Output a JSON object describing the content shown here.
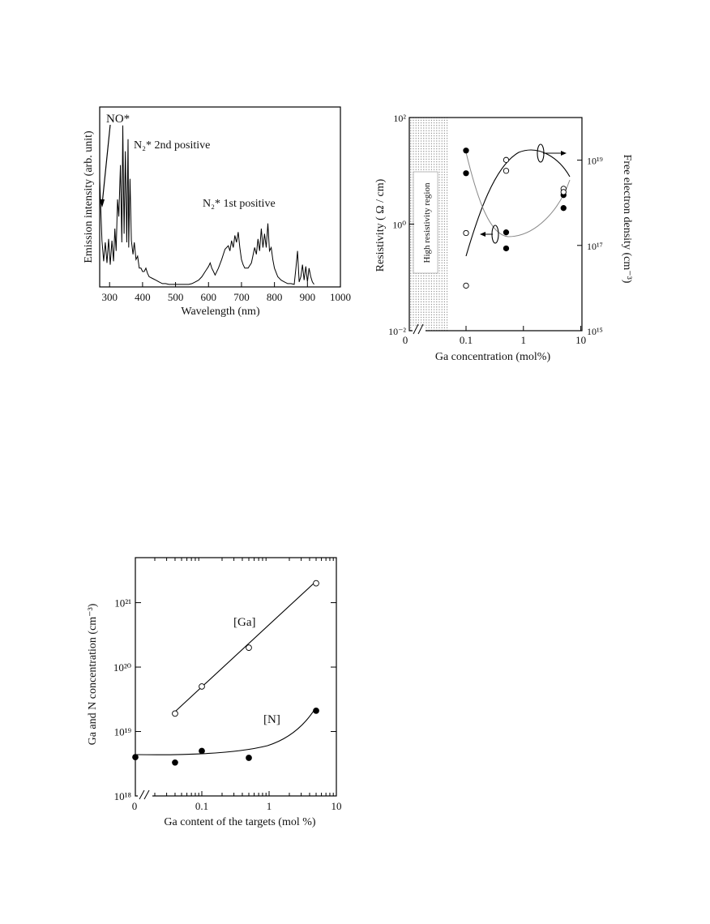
{
  "chart_data": [
    {
      "type": "line",
      "xlabel": "Wavelength (nm)",
      "ylabel": "Emission intensity (arb. unit)",
      "xlim": [
        270,
        1000
      ],
      "xticks": [
        "300",
        "400",
        "500",
        "600",
        "700",
        "800",
        "900",
        "1000"
      ],
      "grid": false,
      "annotations": [
        {
          "text": "NO*",
          "id": "no"
        },
        {
          "text": "N₂* 2nd positive",
          "id": "n2-second"
        },
        {
          "text": "N₂* 1st positive",
          "id": "n2-first"
        }
      ],
      "series": [
        {
          "x": [
            270,
            277,
            282,
            287,
            292,
            297,
            302,
            307,
            312,
            316,
            320,
            324,
            328,
            333,
            337,
            340,
            344,
            348,
            352,
            356,
            358,
            362,
            366,
            371,
            375,
            380,
            385,
            390,
            395,
            400,
            405,
            410,
            415,
            420,
            430,
            440,
            450,
            460,
            470,
            480,
            490,
            500,
            510,
            520,
            530,
            540,
            550,
            560,
            570,
            580,
            590,
            600,
            605,
            610,
            615,
            620,
            630,
            640,
            650,
            660,
            665,
            670,
            675,
            680,
            685,
            690,
            695,
            700,
            705,
            710,
            720,
            730,
            740,
            745,
            750,
            755,
            760,
            765,
            770,
            775,
            780,
            785,
            790,
            795,
            800,
            810,
            820,
            830,
            840,
            850,
            860,
            865,
            870,
            875,
            880,
            885,
            890,
            895,
            900,
            905,
            910,
            915,
            920
          ],
          "values": [
            0.62,
            0.26,
            0.14,
            0.25,
            0.13,
            0.27,
            0.12,
            0.26,
            0.14,
            0.33,
            0.2,
            0.5,
            0.4,
            0.7,
            0.25,
            0.93,
            0.3,
            0.78,
            0.25,
            0.85,
            0.22,
            0.62,
            0.26,
            0.18,
            0.25,
            0.15,
            0.17,
            0.1,
            0.1,
            0.08,
            0.08,
            0.1,
            0.07,
            0.05,
            0.04,
            0.03,
            0.02,
            0.01,
            0.01,
            0.005,
            0.005,
            0.005,
            0.005,
            0.005,
            0.005,
            0.005,
            0.01,
            0.02,
            0.03,
            0.05,
            0.08,
            0.11,
            0.13,
            0.1,
            0.08,
            0.06,
            0.1,
            0.15,
            0.21,
            0.23,
            0.2,
            0.26,
            0.22,
            0.29,
            0.25,
            0.31,
            0.22,
            0.15,
            0.12,
            0.1,
            0.1,
            0.13,
            0.22,
            0.18,
            0.27,
            0.2,
            0.33,
            0.22,
            0.3,
            0.22,
            0.36,
            0.2,
            0.22,
            0.15,
            0.1,
            0.05,
            0.03,
            0.02,
            0.01,
            0.01,
            0.005,
            0.1,
            0.2,
            0.02,
            0.05,
            0.12,
            0.03,
            0.11,
            0.02,
            0.1,
            0.05,
            0.02,
            0.005
          ]
        }
      ]
    },
    {
      "type": "scatter",
      "xlabel": "Ga concentration (mol%)",
      "ylabel": "Resistivity ( Ω / cm)",
      "y2label": "Free electron density (cm⁻³)",
      "xticks": [
        "0",
        "0.1",
        "1",
        "10"
      ],
      "yticks": [
        "10⁻²",
        "10⁰",
        "10²"
      ],
      "y2ticks": [
        "10¹⁵",
        "10¹⁷",
        "10¹⁹"
      ],
      "ylim": [
        0.01,
        100
      ],
      "y2lim": [
        1000000000000000.0,
        1e+20
      ],
      "log_x": true,
      "log_y": true,
      "grid": false,
      "annotations": [
        {
          "text": "High resistivity region"
        }
      ],
      "series": [
        {
          "marker": "filled",
          "x": [
            0.1,
            0.1,
            0.5,
            0.5,
            5,
            5
          ],
          "values": [
            24,
            9,
            0.7,
            0.35,
            3.5,
            2
          ]
        },
        {
          "marker": "open",
          "x": [
            0.1,
            0.1,
            0.5,
            0.5,
            5,
            5
          ],
          "values": [
            0.68,
            0.07,
            16,
            10,
            4.6,
            4
          ]
        }
      ]
    },
    {
      "type": "scatter",
      "xlabel": "Ga content of the targets (mol %)",
      "ylabel": "Ga and N concentration (cm⁻³)",
      "xticks": [
        "0",
        "0.1",
        "1",
        "10"
      ],
      "yticks": [
        "10¹⁸",
        "10¹⁹",
        "10²⁰",
        "10²¹"
      ],
      "ylim": [
        1e+18,
        5e+21
      ],
      "log_x": true,
      "log_y": true,
      "grid": false,
      "series": [
        {
          "name": "[Ga]",
          "marker": "open",
          "x": [
            0.04,
            0.1,
            0.5,
            5
          ],
          "values": [
            1.9e+19,
            5e+19,
            2e+20,
            2e+21
          ]
        },
        {
          "name": "[N]",
          "marker": "filled",
          "x": [
            0,
            0.04,
            0.1,
            0.5,
            5
          ],
          "values": [
            4e+18,
            3.3e+18,
            5e+18,
            3.9e+18,
            2.1e+19
          ]
        }
      ]
    }
  ]
}
